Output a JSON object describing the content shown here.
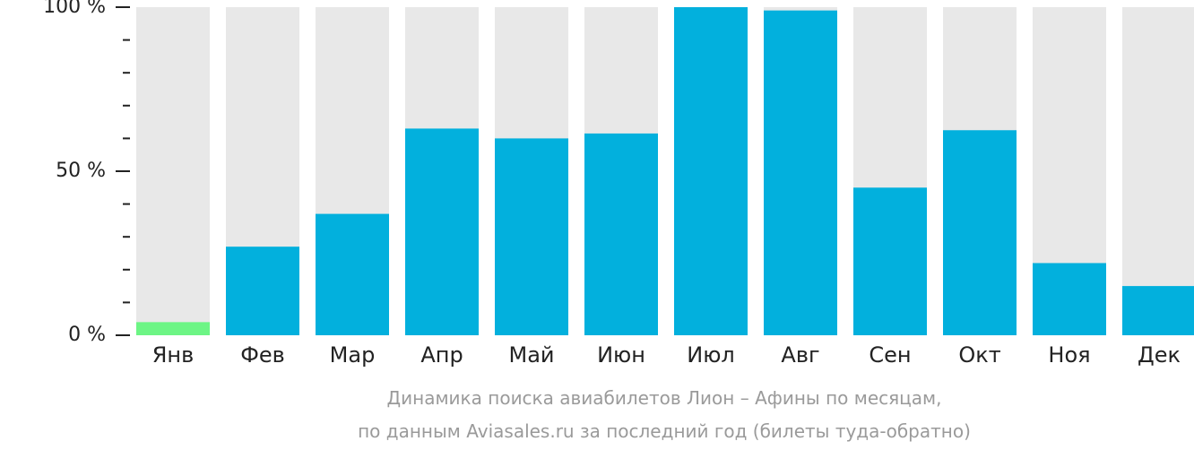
{
  "chart_data": {
    "type": "bar",
    "categories": [
      "Янв",
      "Фев",
      "Мар",
      "Апр",
      "Май",
      "Июн",
      "Июл",
      "Авг",
      "Сен",
      "Окт",
      "Ноя",
      "Дек"
    ],
    "values": [
      4,
      27,
      37,
      63,
      60,
      61.5,
      100,
      99,
      45,
      62.5,
      22,
      15
    ],
    "highlight_index": 0,
    "ylim": [
      0,
      100
    ],
    "y_major_ticks": [
      {
        "value": 0,
        "label": "0 %"
      },
      {
        "value": 50,
        "label": "50 %"
      },
      {
        "value": 100,
        "label": "100 %"
      }
    ],
    "y_minor_step": 10,
    "caption_line1": "Динамика поиска авиабилетов Лион – Афины по месяцам,",
    "caption_line2": "по данным Aviasales.ru за последний год (билеты туда-обратно)",
    "colors": {
      "bar": "#02b0dd",
      "highlight": "#6df585",
      "track": "#e8e8e8",
      "tick": "#222222"
    }
  }
}
